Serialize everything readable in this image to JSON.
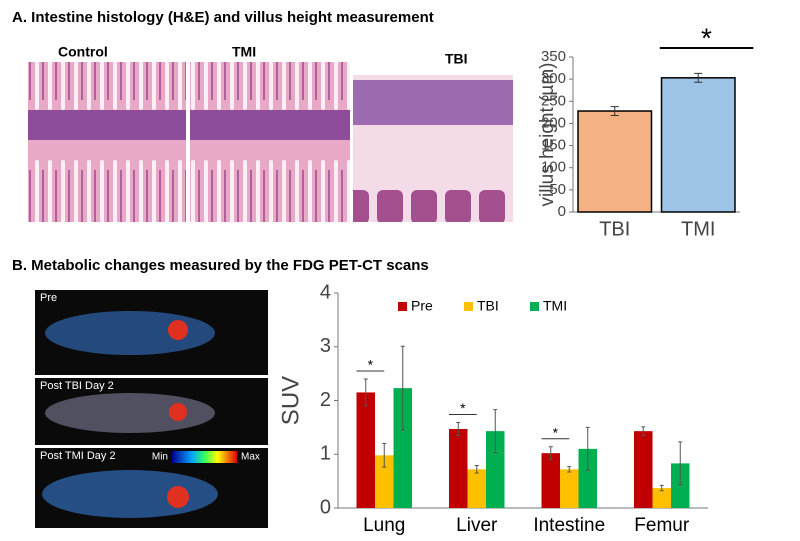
{
  "panel_a": {
    "title": "A. Intestine histology (H&E) and villus height measurement",
    "image_labels": [
      "Control",
      "TMI",
      "TBI"
    ]
  },
  "panel_b": {
    "title": "B. Metabolic changes measured by the FDG PET-CT scans",
    "image_labels": [
      "Pre",
      "Post TBI Day 2",
      "Post TMI Day 2"
    ],
    "colorbar_labels": [
      "Min",
      "Max"
    ]
  },
  "chart_data": [
    {
      "type": "bar",
      "ylabel": "villus height (µm)",
      "categories": [
        "TBI",
        "TMI"
      ],
      "values": [
        228,
        303
      ],
      "errors": [
        10,
        10
      ],
      "colors": [
        "#f4b183",
        "#9dc3e6"
      ],
      "ylim": [
        0,
        350
      ],
      "yticks": [
        0,
        50,
        100,
        150,
        200,
        250,
        300,
        350
      ],
      "annotation": "*"
    },
    {
      "type": "grouped_bar",
      "ylabel": "SUV",
      "categories": [
        "Lung",
        "Liver",
        "Intestine",
        "Femur"
      ],
      "significance_labels": [
        "*",
        "*",
        "*",
        null
      ],
      "series": [
        {
          "name": "Pre",
          "color": "#c00000",
          "values": [
            2.15,
            1.47,
            1.02,
            1.43
          ],
          "errors": [
            0.25,
            0.12,
            0.12,
            0.08
          ]
        },
        {
          "name": "TBI",
          "color": "#ffc000",
          "values": [
            0.98,
            0.72,
            0.72,
            0.37
          ],
          "errors": [
            0.22,
            0.07,
            0.05,
            0.05
          ]
        },
        {
          "name": "TMI",
          "color": "#00b050",
          "values": [
            2.23,
            1.43,
            1.1,
            0.83
          ],
          "errors": [
            0.78,
            0.4,
            0.4,
            0.4
          ]
        }
      ],
      "ylim": [
        0,
        4
      ],
      "yticks": [
        0,
        1,
        2,
        3,
        4
      ]
    }
  ]
}
